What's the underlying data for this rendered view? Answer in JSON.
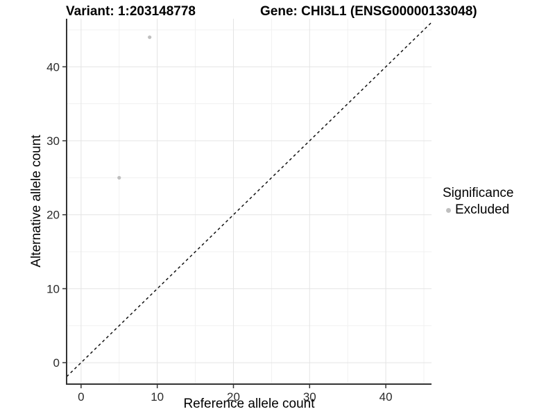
{
  "title": {
    "variant": "Variant: 1:203148778",
    "gene": "Gene: CHI3L1 (ENSG00000133048)"
  },
  "chart_data": {
    "type": "scatter",
    "xlabel": "Reference allele count",
    "ylabel": "Alternative allele count",
    "xlim": [
      -1.9,
      46.0
    ],
    "ylim": [
      -2.9,
      46.5
    ],
    "x_ticks": [
      0,
      10,
      20,
      30,
      40
    ],
    "y_ticks": [
      0,
      10,
      20,
      30,
      40
    ],
    "x_minor_ticks": [
      5,
      15,
      25,
      35,
      45
    ],
    "y_minor_ticks": [
      5,
      15,
      25,
      35,
      45
    ],
    "grid": true,
    "legend_position": "right",
    "series": [
      {
        "name": "Excluded",
        "color": "#bfbfbf",
        "points": [
          {
            "x": 9,
            "y": 44
          },
          {
            "x": 5,
            "y": 25
          }
        ]
      }
    ],
    "reference_line": {
      "kind": "identity",
      "style": "dashed",
      "color": "#111111"
    }
  },
  "legend": {
    "title": "Significance",
    "items": [
      {
        "label": "Excluded",
        "color": "#bfbfbf",
        "marker": "circle-icon"
      }
    ]
  },
  "colors": {
    "background": "#ffffff",
    "grid_major": "#e4e4e4",
    "grid_minor": "#f1f1f1",
    "axis_line": "#333333",
    "tick_mark": "#333333",
    "tick_label": "#2b2b2b",
    "point": "#bfbfbf"
  }
}
